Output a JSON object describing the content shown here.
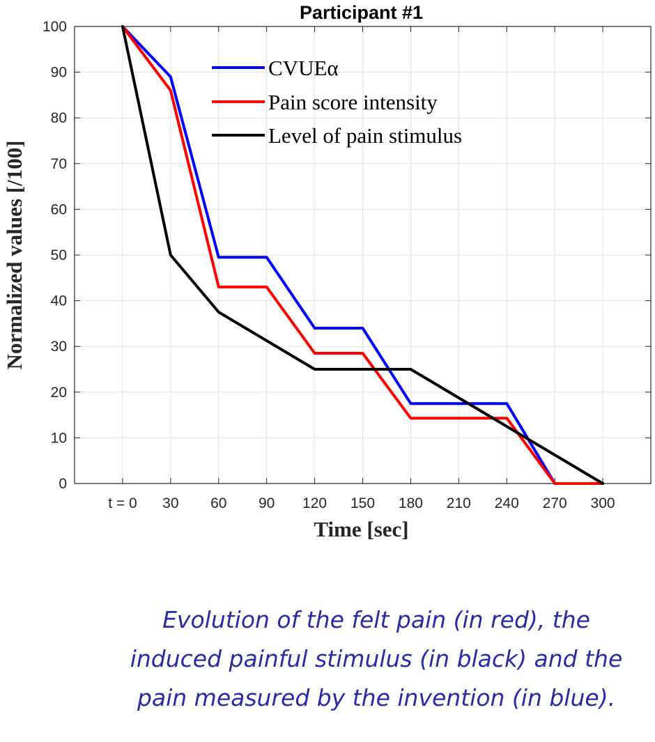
{
  "chart_data": {
    "type": "line",
    "title": "Participant #1",
    "xlabel": "Time [sec]",
    "ylabel": "Normalized values [/100]",
    "x_ticks": [
      "t = 0",
      "30",
      "60",
      "90",
      "120",
      "150",
      "180",
      "210",
      "240",
      "270",
      "300"
    ],
    "xlim": [
      -30,
      330
    ],
    "ylim": [
      0,
      100
    ],
    "y_ticks": [
      0,
      10,
      20,
      30,
      40,
      50,
      60,
      70,
      80,
      90,
      100
    ],
    "grid": true,
    "legend_position": "top-center",
    "series": [
      {
        "name": "CVUEα",
        "color": "#0000ff",
        "x": [
          0,
          30,
          60,
          90,
          120,
          150,
          180,
          210,
          240,
          270,
          300
        ],
        "y": [
          100,
          89,
          49.5,
          49.5,
          34,
          34,
          17.5,
          17.5,
          17.5,
          0,
          0
        ]
      },
      {
        "name": "Pain score intensity",
        "color": "#ff0000",
        "x": [
          0,
          30,
          60,
          90,
          120,
          150,
          180,
          210,
          240,
          270,
          300
        ],
        "y": [
          100,
          86,
          43,
          43,
          28.5,
          28.5,
          14.3,
          14.3,
          14.3,
          0,
          0
        ]
      },
      {
        "name": "Level of pain stimulus",
        "color": "#000000",
        "x": [
          0,
          30,
          60,
          120,
          150,
          180,
          300
        ],
        "y": [
          100,
          50,
          37.5,
          25,
          25,
          25,
          0
        ]
      }
    ]
  },
  "caption": [
    "Evolution of the felt pain (in red), the",
    "induced painful stimulus (in black) and the",
    "pain measured by the invention (in blue)."
  ]
}
